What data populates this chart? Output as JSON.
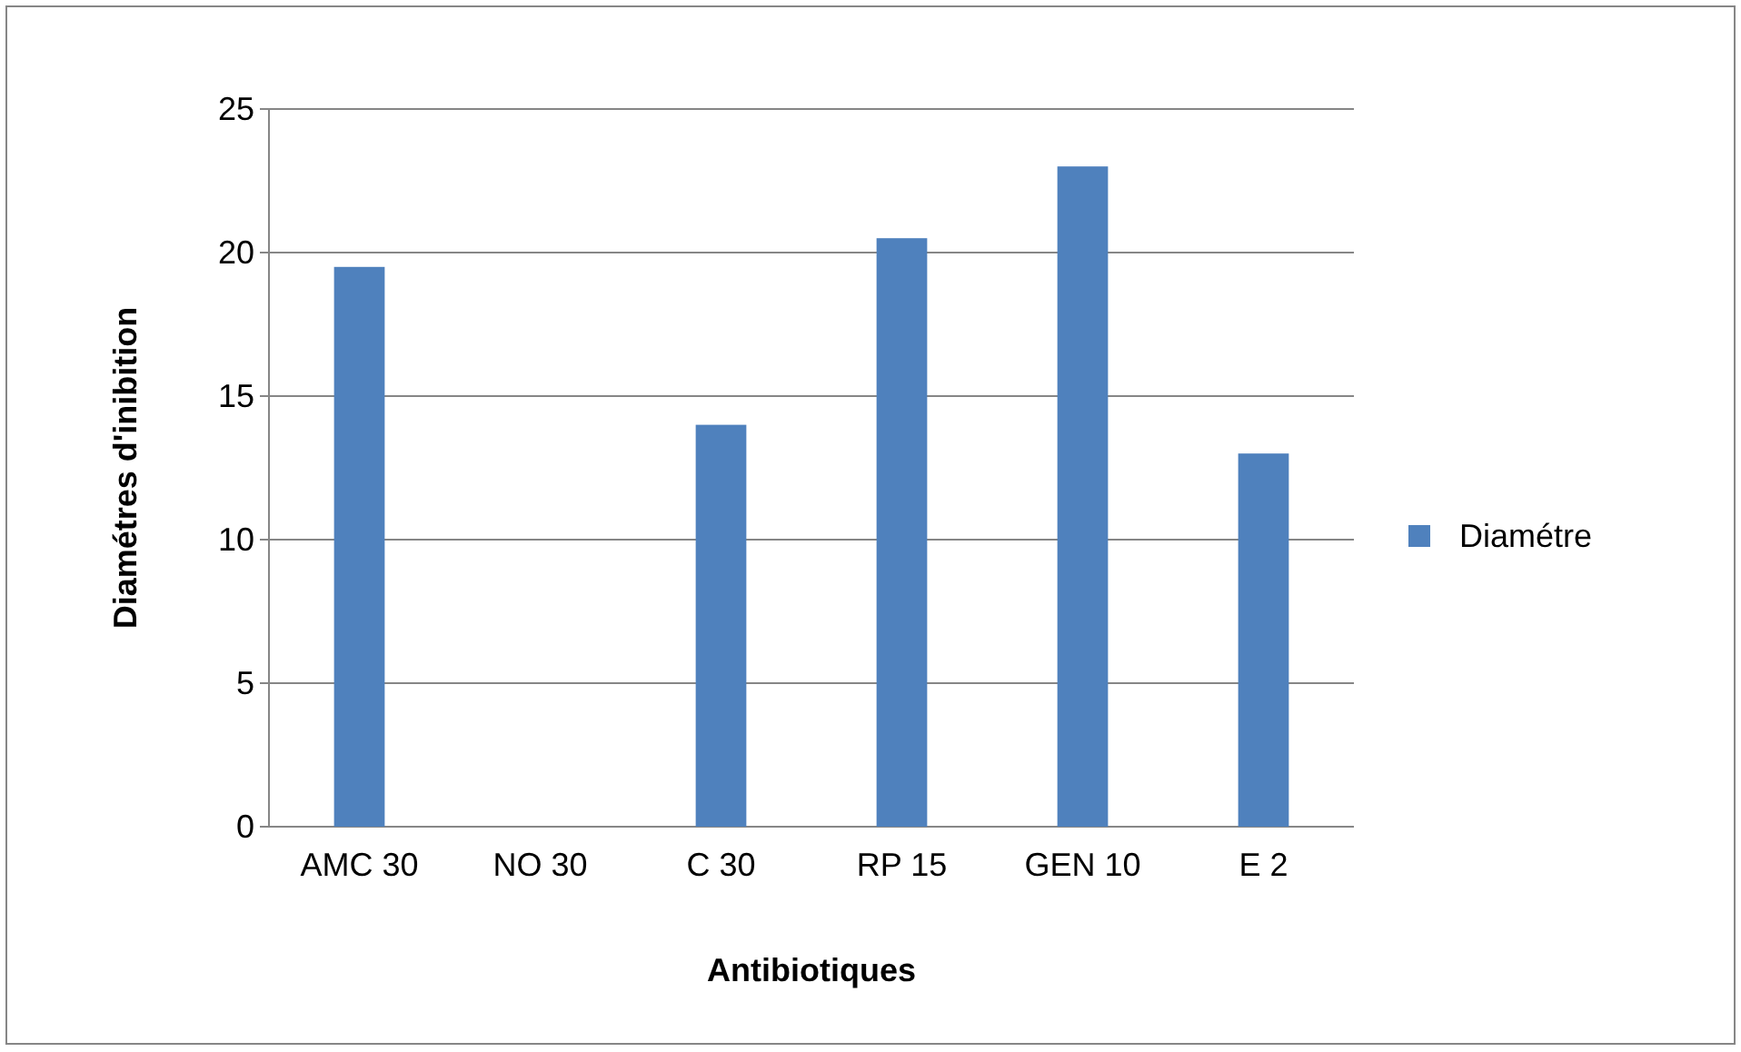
{
  "chart_data": {
    "type": "bar",
    "xlabel": "Antibiotiques",
    "ylabel": "Diamétres d'inibition",
    "categories": [
      "AMC 30",
      "NO 30",
      "C 30",
      "RP 15",
      "GEN 10",
      "E 2"
    ],
    "series": [
      {
        "name": "Diamétre",
        "color": "#4f81bd",
        "values": [
          19.5,
          0,
          14,
          20.5,
          23,
          13
        ]
      }
    ],
    "ylim": [
      0,
      25
    ],
    "yticks": [
      0,
      5,
      10,
      15,
      20,
      25
    ],
    "grid": "y",
    "legend": "right"
  }
}
